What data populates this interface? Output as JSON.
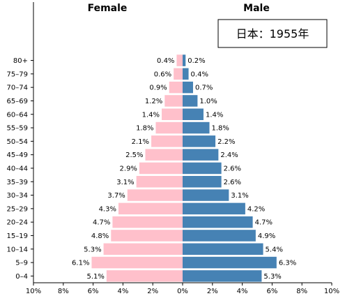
{
  "chart_data": {
    "type": "bar",
    "orientation": "horizontal-population-pyramid",
    "inset_title": "日本：1955年",
    "categories": [
      "0–4",
      "5–9",
      "10–14",
      "15–19",
      "20–24",
      "25–29",
      "30–34",
      "35–39",
      "40–44",
      "45–49",
      "50–54",
      "55–59",
      "60–64",
      "65–69",
      "70–74",
      "75–79",
      "80+"
    ],
    "series": [
      {
        "name": "Female",
        "color": "#ffc0cb",
        "values": [
          5.1,
          6.1,
          5.3,
          4.8,
          4.7,
          4.3,
          3.7,
          3.1,
          2.9,
          2.5,
          2.1,
          1.8,
          1.4,
          1.2,
          0.9,
          0.6,
          0.4
        ],
        "labels": [
          "5.1%",
          "6.1%",
          "5.3%",
          "4.8%",
          "4.7%",
          "4.3%",
          "3.7%",
          "3.1%",
          "2.9%",
          "2.5%",
          "2.1%",
          "1.8%",
          "1.4%",
          "1.2%",
          "0.9%",
          "0.6%",
          "0.4%"
        ]
      },
      {
        "name": "Male",
        "color": "#4682b4",
        "values": [
          5.3,
          6.3,
          5.4,
          4.9,
          4.7,
          4.2,
          3.1,
          2.6,
          2.6,
          2.4,
          2.2,
          1.8,
          1.4,
          1.0,
          0.7,
          0.4,
          0.2
        ],
        "labels": [
          "5.3%",
          "6.3%",
          "5.4%",
          "4.9%",
          "4.7%",
          "4.2%",
          "3.1%",
          "2.6%",
          "2.6%",
          "2.4%",
          "2.2%",
          "1.8%",
          "1.4%",
          "1.0%",
          "0.7%",
          "0.4%",
          "0.2%"
        ]
      }
    ],
    "x_ticks": [
      "10%",
      "8%",
      "6%",
      "4%",
      "2%",
      "0%",
      "2%",
      "4%",
      "6%",
      "8%",
      "10%"
    ],
    "xlim": [
      -10,
      10
    ],
    "grid": false
  }
}
